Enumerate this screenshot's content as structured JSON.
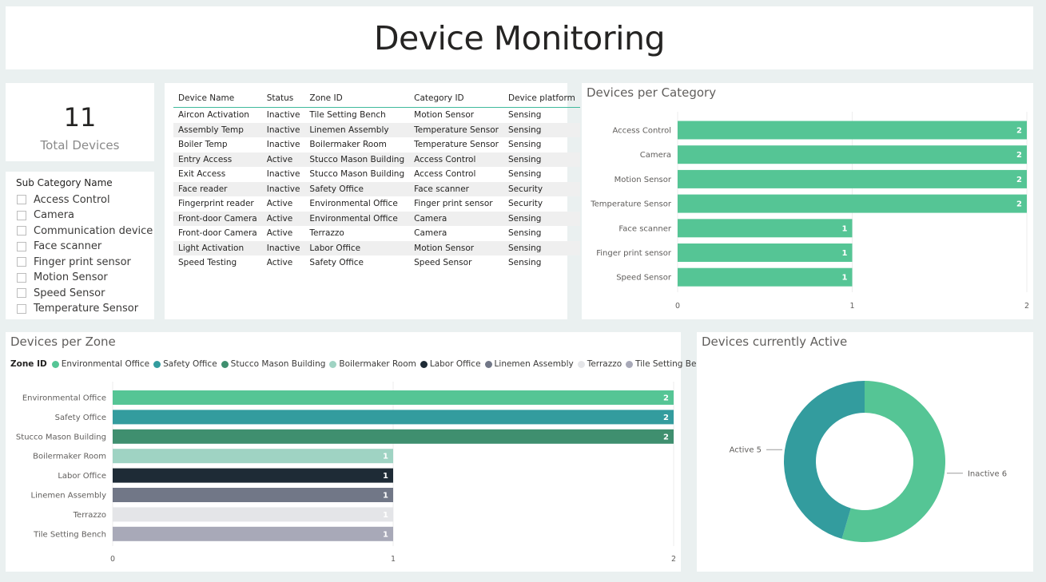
{
  "header": {
    "title": "Device Monitoring"
  },
  "kpi": {
    "value": "11",
    "label": "Total Devices"
  },
  "slicer": {
    "title": "Sub Category Name",
    "items": [
      "Access Control",
      "Camera",
      "Communication device",
      "Face scanner",
      "Finger print sensor",
      "Motion Sensor",
      "Speed Sensor",
      "Temperature Sensor"
    ]
  },
  "table": {
    "columns": [
      "Device Name",
      "Status",
      "Zone ID",
      "Category ID",
      "Device platform"
    ],
    "rows": [
      [
        "Aircon Activation",
        "Inactive",
        "Tile Setting Bench",
        "Motion Sensor",
        "Sensing"
      ],
      [
        "Assembly Temp",
        "Inactive",
        "Linemen Assembly",
        "Temperature Sensor",
        "Sensing"
      ],
      [
        "Boiler Temp",
        "Inactive",
        "Boilermaker Room",
        "Temperature Sensor",
        "Sensing"
      ],
      [
        "Entry Access",
        "Active",
        "Stucco Mason Building",
        "Access Control",
        "Sensing"
      ],
      [
        "Exit Access",
        "Inactive",
        "Stucco Mason Building",
        "Access Control",
        "Sensing"
      ],
      [
        "Face reader",
        "Inactive",
        "Safety Office",
        "Face scanner",
        "Security"
      ],
      [
        "Fingerprint reader",
        "Active",
        "Environmental Office",
        "Finger print sensor",
        "Security"
      ],
      [
        "Front-door Camera",
        "Active",
        "Environmental Office",
        "Camera",
        "Sensing"
      ],
      [
        "Front-door Camera",
        "Active",
        "Terrazzo",
        "Camera",
        "Sensing"
      ],
      [
        "Light Activation",
        "Inactive",
        "Labor Office",
        "Motion Sensor",
        "Sensing"
      ],
      [
        "Speed Testing",
        "Active",
        "Safety Office",
        "Speed Sensor",
        "Sensing"
      ]
    ]
  },
  "chart_data": [
    {
      "id": "category",
      "type": "bar",
      "orientation": "horizontal",
      "title": "Devices per Category",
      "categories": [
        "Access Control",
        "Camera",
        "Motion Sensor",
        "Temperature Sensor",
        "Face scanner",
        "Finger print sensor",
        "Speed Sensor"
      ],
      "values": [
        2,
        2,
        2,
        2,
        1,
        1,
        1
      ],
      "xlim": [
        0,
        2
      ],
      "ticks": [
        "0",
        "1",
        "2"
      ],
      "color": "#55c595"
    },
    {
      "id": "zone",
      "type": "bar",
      "orientation": "horizontal",
      "title": "Devices per Zone",
      "legend_title": "Zone ID",
      "categories": [
        "Environmental Office",
        "Safety Office",
        "Stucco Mason Building",
        "Boilermaker Room",
        "Labor Office",
        "Linemen Assembly",
        "Terrazzo",
        "Tile Setting Bench"
      ],
      "values": [
        2,
        2,
        2,
        1,
        1,
        1,
        1,
        1
      ],
      "colors": [
        "#55c595",
        "#339c9e",
        "#3f8f6f",
        "#9fd3c3",
        "#1e2b36",
        "#717787",
        "#e4e5e8",
        "#a8a9b8"
      ],
      "label_colors": [
        "#ffffff",
        "#ffffff",
        "#ffffff",
        "#ffffff",
        "#ffffff",
        "#ffffff",
        "#ffffff",
        "#ffffff"
      ],
      "xlim": [
        0,
        2
      ],
      "ticks": [
        "0",
        "1",
        "2"
      ]
    },
    {
      "id": "active",
      "type": "pie",
      "title": "Devices currently Active",
      "slices": [
        {
          "label": "Inactive",
          "value": 6,
          "display": "Inactive 6",
          "color": "#55c595"
        },
        {
          "label": "Active",
          "value": 5,
          "display": "Active 5",
          "color": "#339c9e"
        }
      ]
    }
  ]
}
